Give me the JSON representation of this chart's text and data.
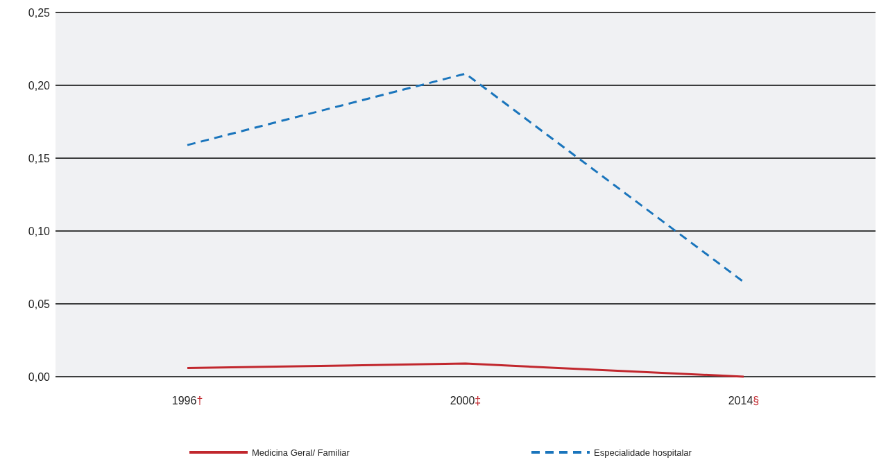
{
  "chart_data": {
    "type": "line",
    "categories": [
      "1996†",
      "2000‡",
      "2014§"
    ],
    "series": [
      {
        "name": "Medicina Geral/ Familiar",
        "color": "#c1272d",
        "values": [
          0.006,
          0.009,
          0.0
        ],
        "line_style": "solid"
      },
      {
        "name": "Especialidade hospitalar",
        "color": "#1a75bc",
        "values": [
          0.159,
          0.208,
          0.065
        ],
        "line_style": "dashed"
      }
    ],
    "ylim": [
      0,
      0.25
    ],
    "yticks": [
      {
        "value": 0,
        "label": "0,00"
      },
      {
        "value": 0.05,
        "label": "0,05"
      },
      {
        "value": 0.1,
        "label": "0,10"
      },
      {
        "value": 0.15,
        "label": "0,15"
      },
      {
        "value": 0.2,
        "label": "0,20"
      },
      {
        "value": 0.25,
        "label": "0,25"
      }
    ],
    "grid": "y",
    "legend": "bottom",
    "marker": "none"
  }
}
